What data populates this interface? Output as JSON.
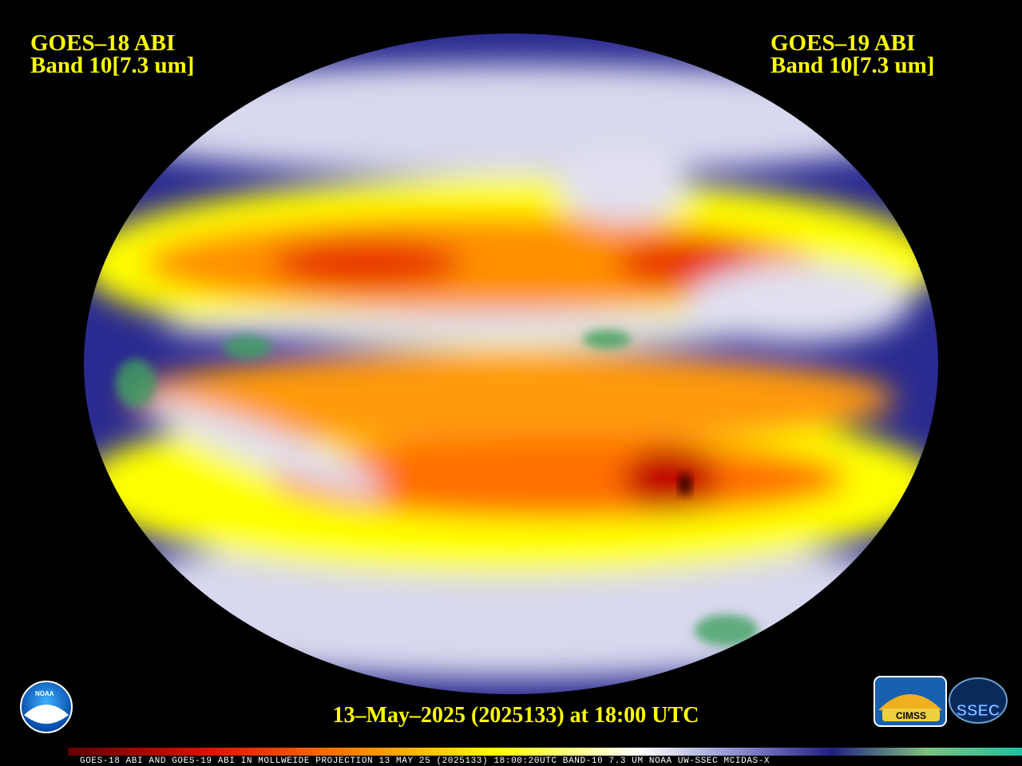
{
  "left_label": {
    "satellite": "GOES–18 ABI",
    "band": "Band 10[7.3 um]"
  },
  "right_label": {
    "satellite": "GOES–19 ABI",
    "band": "Band 10[7.3 um]"
  },
  "timestamp": "13–May–2025 (2025133) at 18:00 UTC",
  "footer": "GOES-18 ABI AND GOES-19 ABI IN MOLLWEIDE PROJECTION 13 MAY 25 (2025133) 18:00:20UTC BAND-10 7.3 UM NOAA UW-SSEC MCIDAS-X",
  "logos": {
    "noaa": "NOAA",
    "cimss": "CIMSS",
    "ssec": "SSEC"
  }
}
